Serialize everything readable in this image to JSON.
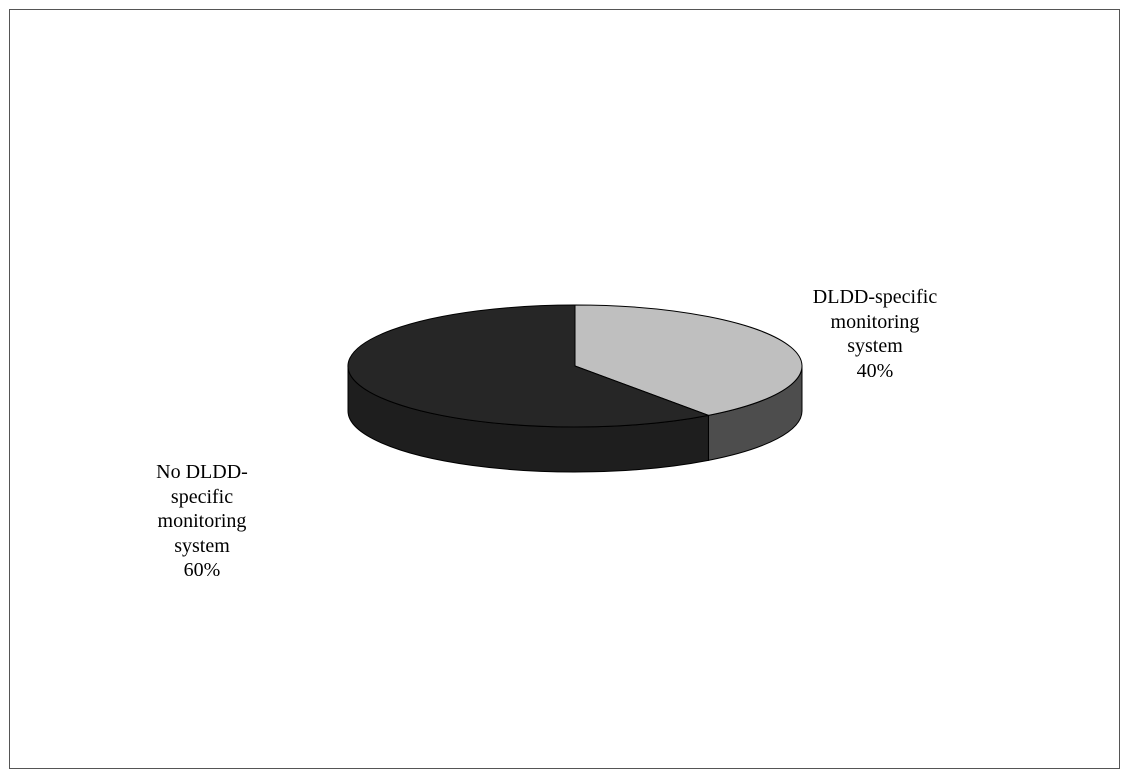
{
  "chart_data": {
    "type": "pie",
    "title": "",
    "slices": [
      {
        "label_lines": [
          "DLDD-specific",
          "monitoring",
          "system"
        ],
        "value": 40,
        "value_label": "40%",
        "color_top": "#bfbfbf",
        "color_side": "#4d4d4d"
      },
      {
        "label_lines": [
          "No DLDD-",
          "specific",
          "monitoring",
          "system"
        ],
        "value": 60,
        "value_label": "60%",
        "color_top": "#262626",
        "color_side": "#1e1e1e"
      }
    ],
    "style": "3d",
    "legend": "none",
    "start_angle_deg": 0,
    "direction": "clockwise"
  }
}
